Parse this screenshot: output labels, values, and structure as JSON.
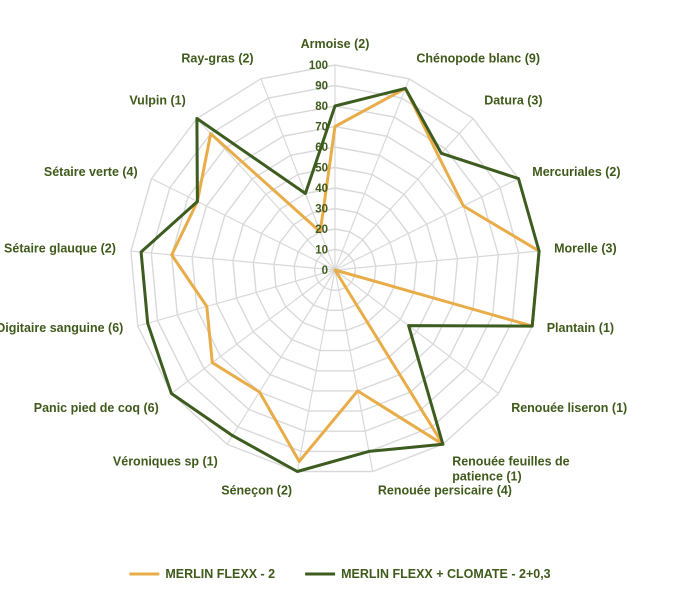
{
  "chart_data": {
    "type": "radar",
    "title": "",
    "categories": [
      "Armoise (2)",
      "Chénopode blanc (9)",
      "Datura (3)",
      "Mercuriales (2)",
      "Morelle (3)",
      "Plantain (1)",
      "Renouée liseron (1)",
      "Renouée feuilles de patience (1)",
      "Renouée persicaire (4)",
      "Séneçon (2)",
      "Véroniques sp (1)",
      "Panic pied de coq (6)",
      "Digitaire sanguine (6)",
      "Sétaire glauque (2)",
      "Sétaire verte (4)",
      "Vulpin (1)",
      "Ray-gras (2)"
    ],
    "rlim": [
      0,
      100
    ],
    "ticks": [
      "0",
      "10",
      "20",
      "30",
      "40",
      "50",
      "60",
      "70",
      "80",
      "90",
      "100"
    ],
    "grid": true,
    "legend_position": "bottom",
    "series": [
      {
        "name": "MERLIN FLEXX - 2",
        "color": "#e8ac48",
        "values": [
          70,
          95,
          75,
          70,
          100,
          100,
          0,
          100,
          60,
          95,
          70,
          75,
          65,
          80,
          75,
          90,
          20
        ]
      },
      {
        "name": "MERLIN FLEXX + CLOMATE - 2+0,3",
        "color": "#3d5c1f",
        "values": [
          80,
          95,
          77,
          100,
          100,
          100,
          45,
          100,
          90,
          100,
          95,
          100,
          95,
          95,
          75,
          100,
          40
        ]
      }
    ]
  }
}
